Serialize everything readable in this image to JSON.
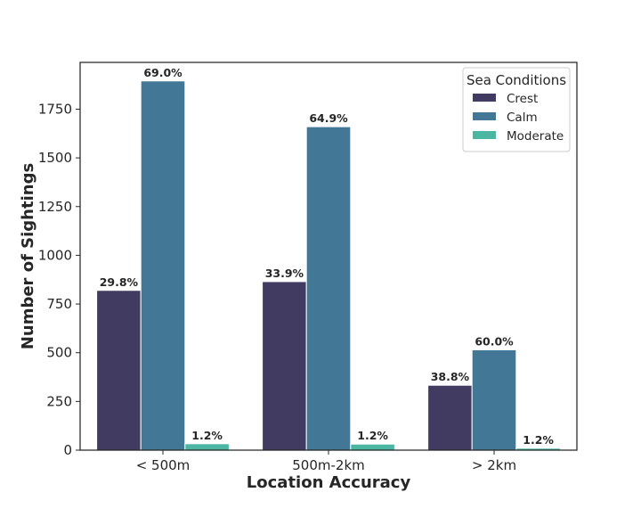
{
  "chart_data": {
    "type": "bar",
    "title": "",
    "xlabel": "Location Accuracy",
    "ylabel": "Number of Sightings",
    "categories": [
      "< 500m",
      "500m-2km",
      "> 2km"
    ],
    "ylim": [
      0,
      1990
    ],
    "yticks": [
      0,
      250,
      500,
      750,
      1000,
      1250,
      1500,
      1750
    ],
    "grid": false,
    "legend": {
      "title": "Sea Conditions",
      "placement": "top-right"
    },
    "series": [
      {
        "name": "Crest",
        "color": "#413b62",
        "values": [
          820,
          865,
          333
        ],
        "labels": [
          "29.8%",
          "33.9%",
          "38.8%"
        ]
      },
      {
        "name": "Calm",
        "color": "#427795",
        "values": [
          1895,
          1660,
          515
        ],
        "labels": [
          "69.0%",
          "64.9%",
          "60.0%"
        ]
      },
      {
        "name": "Moderate",
        "color": "#4bb7a3",
        "values": [
          33,
          31,
          10
        ],
        "labels": [
          "1.2%",
          "1.2%",
          "1.2%"
        ]
      }
    ]
  }
}
